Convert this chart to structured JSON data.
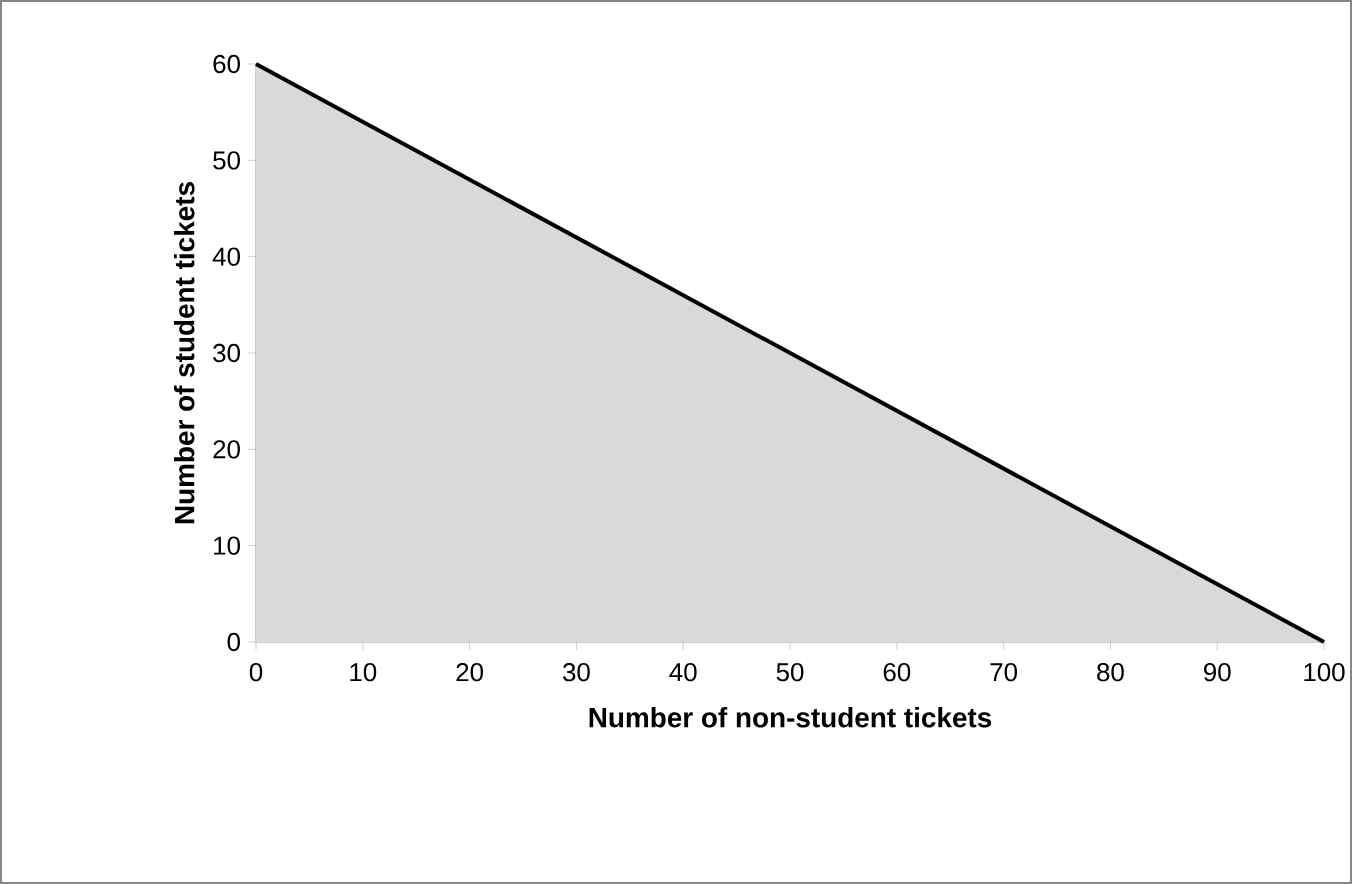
{
  "chart_data": {
    "type": "area",
    "xlabel": "Number of non-student tickets",
    "ylabel": "Number of student tickets",
    "x": [
      0,
      100
    ],
    "series": [
      {
        "type": "area",
        "color": "#d9d9d9",
        "values": [
          60,
          0
        ]
      }
    ],
    "xlim": [
      0,
      100
    ],
    "ylim": [
      0,
      60
    ],
    "xticks": [
      0,
      10,
      20,
      30,
      40,
      50,
      60,
      70,
      80,
      90,
      100
    ],
    "yticks": [
      0,
      10,
      20,
      30,
      40,
      50,
      60
    ],
    "grid": false,
    "marker": "none",
    "line_style": "solid"
  }
}
